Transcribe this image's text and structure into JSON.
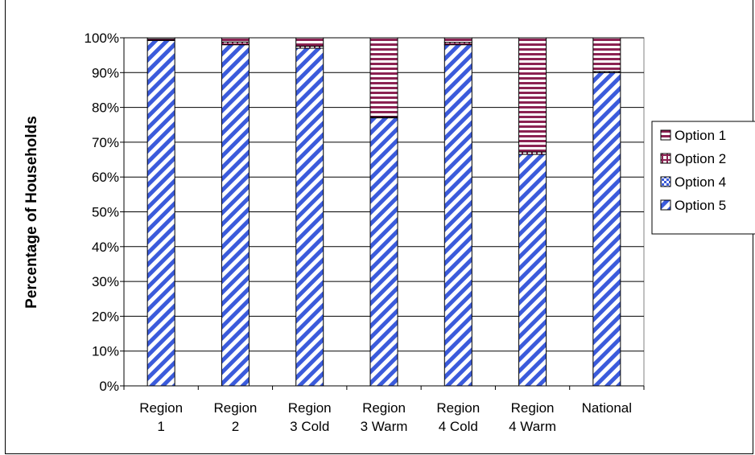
{
  "chart_data": {
    "type": "bar",
    "stacked": true,
    "categories": [
      [
        "Region",
        "1"
      ],
      [
        "Region",
        "2"
      ],
      [
        "Region",
        "3 Cold"
      ],
      [
        "Region",
        "3 Warm"
      ],
      [
        "Region",
        "4 Cold"
      ],
      [
        "Region",
        "4 Warm"
      ],
      [
        "National"
      ]
    ],
    "ylabel": "Percentage of Households",
    "ylim": [
      0,
      100
    ],
    "yticks": [
      "0%",
      "10%",
      "20%",
      "30%",
      "40%",
      "50%",
      "60%",
      "70%",
      "80%",
      "90%",
      "100%"
    ],
    "grid": true,
    "legend_position": "right",
    "series": [
      {
        "name": "Option 5",
        "pattern": "diagonal-stripes",
        "color": "#3B5BDB",
        "values": [
          99.2,
          98.0,
          97.0,
          77.0,
          98.0,
          66.5,
          90.0
        ]
      },
      {
        "name": "Option 4",
        "pattern": "checker",
        "color": "#3B5BDB",
        "values": [
          0.0,
          0.0,
          0.0,
          0.0,
          0.0,
          0.0,
          0.0
        ]
      },
      {
        "name": "Option 2",
        "pattern": "grid",
        "color": "#8B2252",
        "values": [
          0.4,
          0.8,
          0.6,
          0.3,
          0.7,
          0.7,
          0.3
        ]
      },
      {
        "name": "Option 1",
        "pattern": "horizontal-stripes",
        "color": "#8B2252",
        "values": [
          0.4,
          1.2,
          2.4,
          22.7,
          1.3,
          32.8,
          9.7
        ]
      }
    ],
    "legend_order": [
      "Option 1",
      "Option 2",
      "Option 4",
      "Option 5"
    ]
  }
}
